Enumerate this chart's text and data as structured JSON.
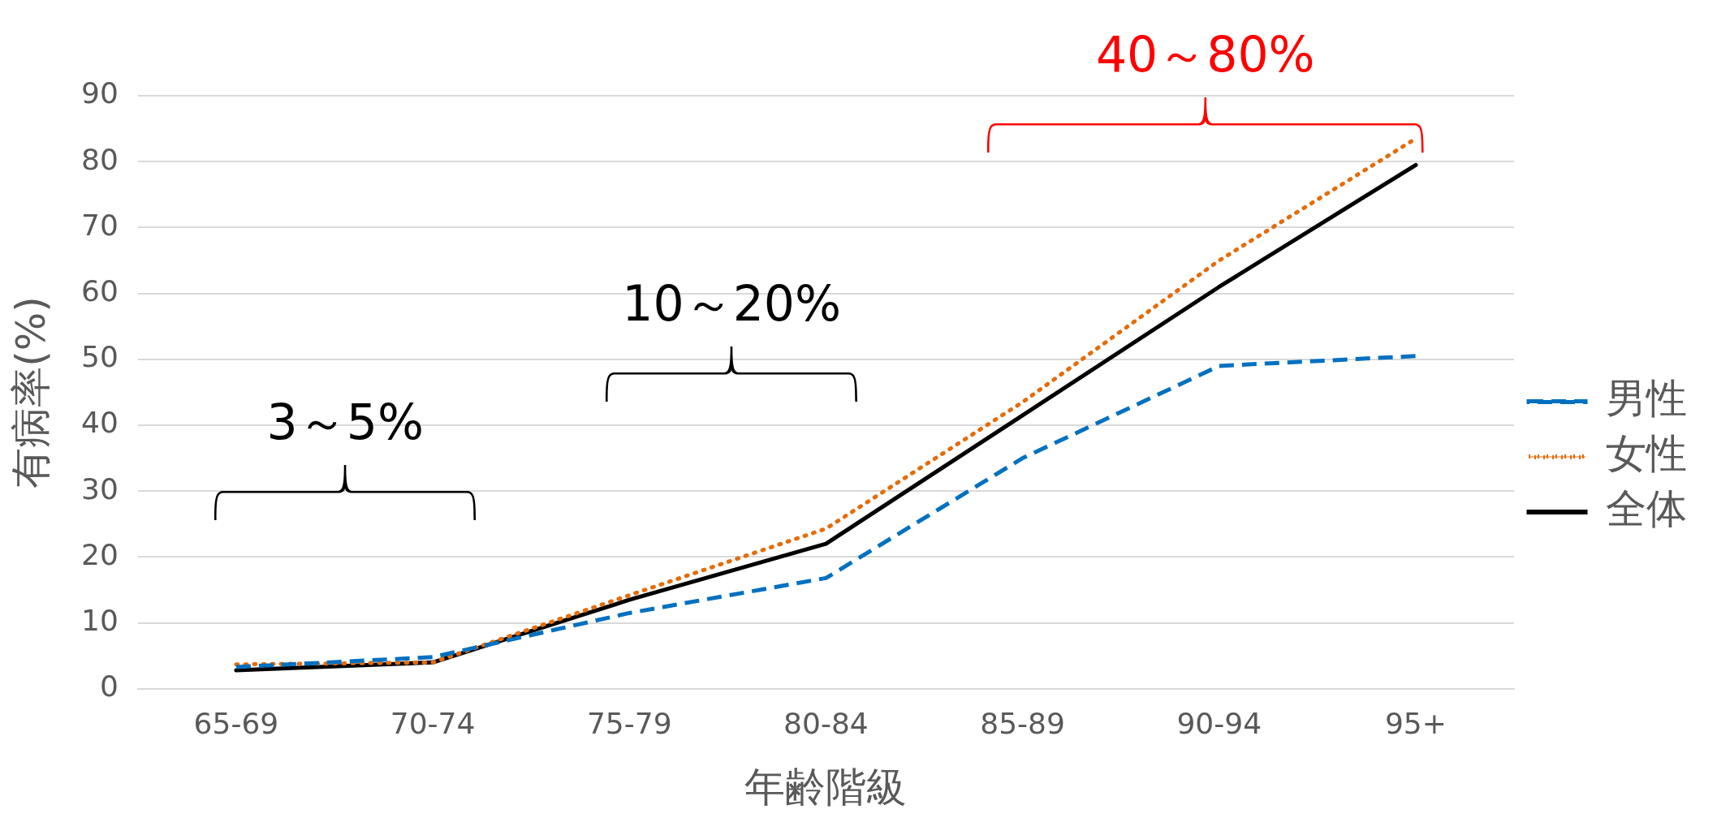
{
  "chart_data": {
    "type": "line",
    "xlabel": "年齢階級",
    "ylabel": "有病率(%)",
    "categories": [
      "65-69",
      "70-74",
      "75-79",
      "80-84",
      "85-89",
      "90-94",
      "95+"
    ],
    "series": [
      {
        "name": "男性",
        "color": "#0070c0",
        "line_style": "dashed",
        "values": [
          3.3,
          4.8,
          11.5,
          16.8,
          35,
          49,
          50.5
        ]
      },
      {
        "name": "女性",
        "color": "#e46c0a",
        "line_style": "dotted",
        "values": [
          3.7,
          4,
          14.2,
          24.3,
          43.5,
          65,
          83.5
        ]
      },
      {
        "name": "全体",
        "color": "#000000",
        "line_style": "solid",
        "values": [
          2.8,
          4,
          13.5,
          22,
          41.5,
          61,
          79.5
        ]
      }
    ],
    "ylim": [
      0,
      90
    ],
    "yticks": [
      0,
      10,
      20,
      30,
      40,
      50,
      60,
      70,
      80,
      90
    ],
    "grid": "y",
    "legend": "right",
    "marker": "none",
    "annotations": [
      "3～5%",
      "10～20%",
      "40～80%"
    ]
  }
}
